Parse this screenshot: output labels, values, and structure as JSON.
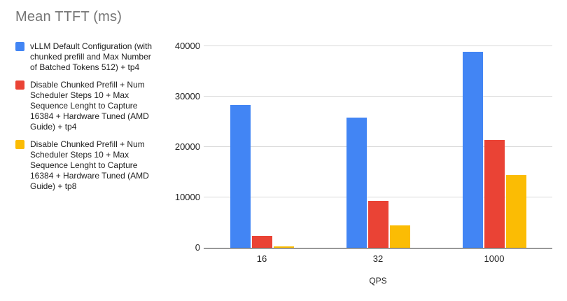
{
  "title": "Mean TTFT (ms)",
  "colors": {
    "series_blue": "#4285F4",
    "series_red": "#EA4335",
    "series_yellow": "#FBBC04",
    "title_text": "#757575",
    "body_text": "#212121",
    "gridline": "#d9d9d9",
    "axis_line": "#333333",
    "background": "#ffffff"
  },
  "chart_data": {
    "type": "bar",
    "title": "Mean TTFT (ms)",
    "xlabel": "QPS",
    "ylabel": "",
    "categories": [
      "16",
      "32",
      "1000"
    ],
    "series": [
      {
        "name": "vLLM Default Configuration (with chunked prefill and Max Number of Batched Tokens 512) + tp4",
        "color": "#4285F4",
        "values": [
          28400,
          25800,
          38900
        ]
      },
      {
        "name": "Disable Chunked Prefill + Num Scheduler Steps 10 + Max Sequence Lenght to Capture 16384 + Hardware Tuned (AMD Guide) + tp4",
        "color": "#EA4335",
        "values": [
          2300,
          9300,
          21400
        ]
      },
      {
        "name": "Disable Chunked Prefill + Num Scheduler Steps 10 + Max Sequence Lenght to Capture 16384 + Hardware Tuned (AMD Guide) + tp8",
        "color": "#FBBC04",
        "values": [
          250,
          4400,
          14400
        ]
      }
    ],
    "ylim": [
      0,
      40000
    ],
    "yticks": [
      0,
      10000,
      20000,
      30000,
      40000
    ],
    "grid": true,
    "legend_position": "left"
  }
}
